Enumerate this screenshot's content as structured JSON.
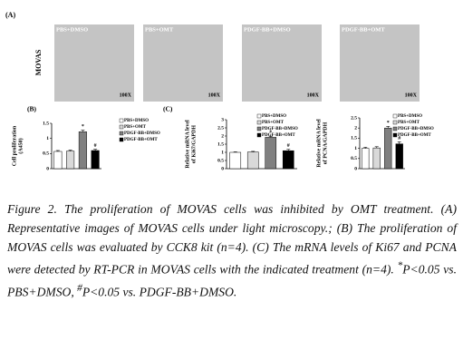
{
  "panel_a": {
    "label": "(A)",
    "row_label": "MOVAS",
    "images": [
      {
        "title": "PBS+DMSO",
        "magnification": "100X"
      },
      {
        "title": "PBS+OMT",
        "magnification": "100X"
      },
      {
        "title": "PDGF-BB+DMSO",
        "magnification": "100X"
      },
      {
        "title": "PDGF-BB+OMT",
        "magnification": "100X"
      }
    ]
  },
  "chart_data": [
    {
      "type": "bar",
      "panel_label": "(B)",
      "ylabel": [
        "Cell proliferation",
        "(A450)"
      ],
      "categories": [
        "PBS+DMSO",
        "PBS+OMT",
        "PDGF-BB+DMSO",
        "PDGF-BB+OMT"
      ],
      "colors": [
        "#ffffff",
        "#d9d9d9",
        "#808080",
        "#000000"
      ],
      "values": [
        0.57,
        0.58,
        1.22,
        0.6
      ],
      "errors": [
        0.03,
        0.03,
        0.05,
        0.04
      ],
      "markers": [
        null,
        null,
        "*",
        "#"
      ],
      "ylim": [
        0,
        1.5
      ],
      "yticks": [
        0,
        0.5,
        1,
        1.5
      ],
      "legend": true
    },
    {
      "type": "bar",
      "panel_label": "(C)",
      "ylabel": [
        "Relative mRNA level",
        "of Ki67/GAPDH"
      ],
      "categories": [
        "PBS+DMSO",
        "PBS+OMT",
        "PDGF-BB+DMSO",
        "PDGF-BB+OMT"
      ],
      "colors": [
        "#ffffff",
        "#d9d9d9",
        "#808080",
        "#000000"
      ],
      "values": [
        1.0,
        1.02,
        1.92,
        1.1
      ],
      "errors": [
        0.03,
        0.04,
        0.06,
        0.08
      ],
      "markers": [
        null,
        null,
        "*",
        "#"
      ],
      "ylim": [
        0,
        3
      ],
      "yticks": [
        0,
        0.5,
        1,
        1.5,
        2,
        2.5,
        3
      ],
      "legend": true
    },
    {
      "type": "bar",
      "ylabel": [
        "Relative mRNA level",
        "of PCNA/GAPDH"
      ],
      "categories": [
        "PBS+DMSO",
        "PBS+OMT",
        "PDGF-BB+DMSO",
        "PDGF-BB+OMT"
      ],
      "colors": [
        "#ffffff",
        "#d9d9d9",
        "#808080",
        "#000000"
      ],
      "values": [
        1.0,
        1.02,
        2.0,
        1.22
      ],
      "errors": [
        0.05,
        0.06,
        0.08,
        0.1
      ],
      "markers": [
        null,
        null,
        "*",
        "#"
      ],
      "ylim": [
        0,
        2.5
      ],
      "yticks": [
        0,
        0.5,
        1,
        1.5,
        2,
        2.5
      ],
      "legend": true
    }
  ],
  "caption": {
    "label": "Figure 2.",
    "body_1": "The proliferation of MOVAS cells was inhibited by OMT treatment. (A) Representative images of MOVAS cells under light microscopy.; (B) The proliferation of MOVAS cells was evaluated by CCK8 kit (n=4). (C) The mRNA levels of Ki67 and PCNA were detected by RT-PCR in MOVAS cells with the indicated treatment (n=4).",
    "sup_1": "*",
    "body_2": "P<0.05 vs. PBS+DMSO, ",
    "sup_2": "#",
    "body_3": "P<0.05 vs. PDGF-BB+DMSO."
  }
}
